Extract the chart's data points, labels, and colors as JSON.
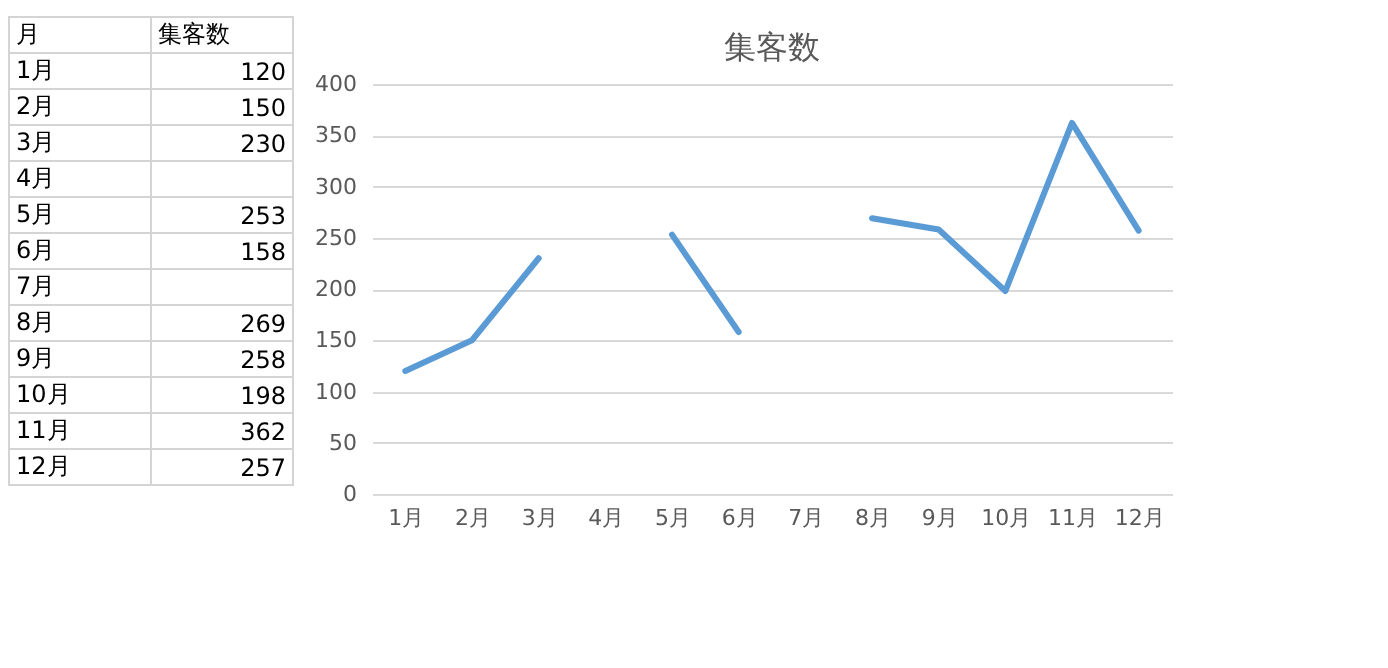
{
  "chart_data": {
    "type": "line",
    "title": "集客数",
    "categories": [
      "1月",
      "2月",
      "3月",
      "4月",
      "5月",
      "6月",
      "7月",
      "8月",
      "9月",
      "10月",
      "11月",
      "12月"
    ],
    "series": [
      {
        "color": "#5b9bd5",
        "values": [
          120,
          150,
          230,
          null,
          253,
          158,
          null,
          269,
          258,
          198,
          362,
          257
        ]
      }
    ],
    "ylim": [
      0,
      400
    ],
    "yticks": [
      0,
      50,
      100,
      150,
      200,
      250,
      300,
      350,
      400
    ],
    "grid": "y",
    "annotations": [
      "月",
      "集客数",
      "120",
      "150",
      "230",
      "253",
      "158",
      "269",
      "258",
      "198",
      "362",
      "257"
    ]
  }
}
